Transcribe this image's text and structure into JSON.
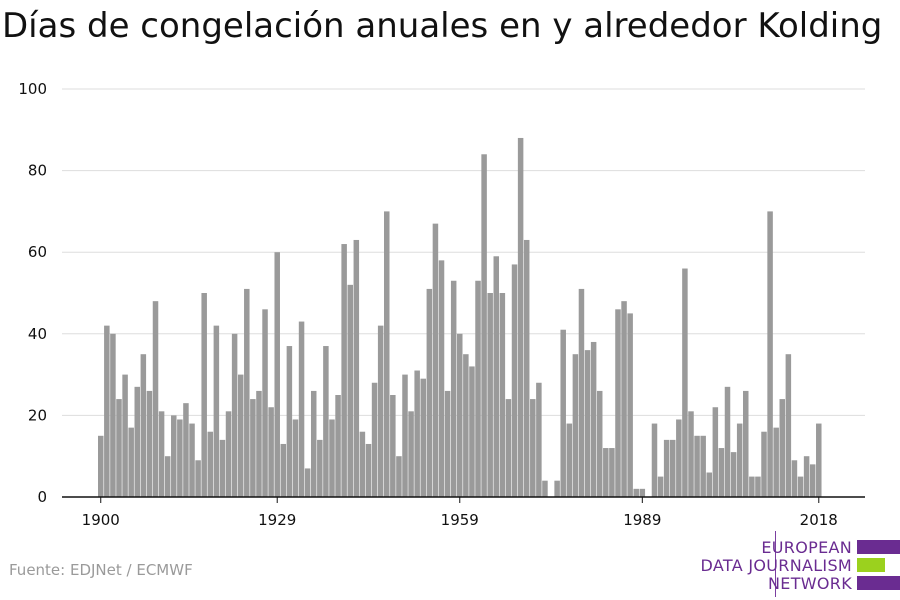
{
  "title": "Días de congelación anuales en y alrededor Kolding",
  "source": "Fuente: EDJNet / ECMWF",
  "logo": {
    "lines": [
      "EUROPEAN",
      "DATA JOURNALISM",
      "NETWORK"
    ],
    "colors": {
      "purple": "#6a2c91",
      "green": "#9bd11e"
    }
  },
  "chart_data": {
    "type": "bar",
    "title": "Días de congelación anuales en y alrededor Kolding",
    "xlabel": "",
    "ylabel": "",
    "x_start": 1900,
    "x_ticks": [
      1900,
      1929,
      1959,
      1989,
      2018
    ],
    "y_ticks": [
      0,
      20,
      40,
      60,
      80,
      100
    ],
    "ylim": [
      0,
      100
    ],
    "grid": true,
    "bar_color": "#9a9a9a",
    "values": [
      15,
      42,
      40,
      24,
      30,
      17,
      27,
      35,
      26,
      48,
      21,
      10,
      20,
      19,
      23,
      18,
      9,
      50,
      16,
      42,
      14,
      21,
      40,
      30,
      51,
      24,
      26,
      46,
      22,
      60,
      13,
      37,
      19,
      43,
      7,
      26,
      14,
      37,
      19,
      25,
      62,
      52,
      63,
      16,
      13,
      28,
      42,
      70,
      25,
      10,
      30,
      21,
      31,
      29,
      51,
      67,
      58,
      26,
      53,
      40,
      35,
      32,
      53,
      84,
      50,
      59,
      50,
      24,
      57,
      88,
      63,
      24,
      28,
      4,
      0,
      4,
      41,
      18,
      35,
      51,
      36,
      38,
      26,
      12,
      12,
      46,
      48,
      45,
      2,
      2,
      0,
      18,
      5,
      14,
      14,
      19,
      56,
      21,
      15,
      15,
      6,
      22,
      12,
      27,
      11,
      18,
      26,
      5,
      5,
      16,
      70,
      17,
      24,
      35,
      9,
      5,
      10,
      8,
      18
    ]
  }
}
